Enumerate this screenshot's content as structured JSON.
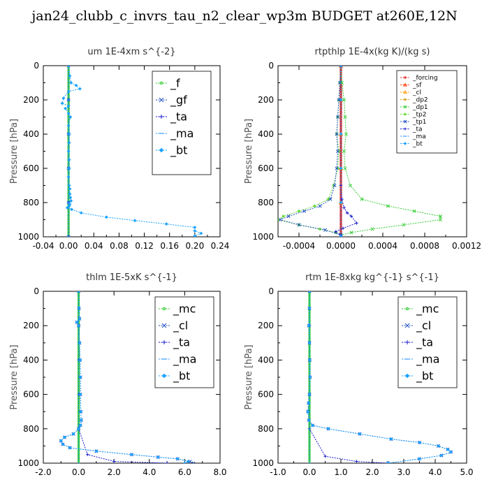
{
  "title": "jan24_clubb_c_invrs_tau_n2_clear_wp3m  BUDGET at260E,12N",
  "chart_data": [
    {
      "type": "line",
      "title": "um   1E-4xm s^{-2}",
      "ylabel": "Pressure [hPa]",
      "xlim": [
        -0.04,
        0.24
      ],
      "ylim": [
        1000,
        0
      ],
      "xticks": [
        "-0.04",
        "0.00",
        "0.04",
        "0.08",
        "0.12",
        "0.16",
        "0.20",
        "0.24"
      ],
      "xtick_values": [
        -0.04,
        0.0,
        0.04,
        0.08,
        0.12,
        0.16,
        0.2,
        0.24
      ],
      "yticks": [
        "0",
        "200",
        "400",
        "600",
        "800",
        "1000"
      ],
      "ytick_values": [
        0,
        200,
        400,
        600,
        800,
        1000
      ],
      "legend": {
        "placement": "top-right",
        "size": "large"
      },
      "series": [
        {
          "name": "_f",
          "color": "#33cc33",
          "marker": "circle",
          "x": [
            0.0,
            0.0,
            0.0,
            0.0,
            0.0,
            0.0
          ],
          "y": [
            0,
            200,
            400,
            600,
            800,
            1000
          ]
        },
        {
          "name": "_gf",
          "color": "#1f4fbf",
          "marker": "cross",
          "x": [
            0.0,
            0.0,
            0.0,
            0.0,
            0.0,
            0.0
          ],
          "y": [
            0,
            200,
            400,
            600,
            800,
            1000
          ]
        },
        {
          "name": "_ta",
          "color": "#1a1acc",
          "marker": "plus",
          "x": [
            0.0,
            0.0,
            0.0,
            0.0,
            0.0,
            0.0
          ],
          "y": [
            0,
            200,
            400,
            600,
            800,
            1000
          ]
        },
        {
          "name": "_ma",
          "color": "#3399ff",
          "marker": "dash",
          "x": [
            0.0,
            0.0,
            0.0,
            0.0,
            0.0,
            0.0
          ],
          "y": [
            0,
            200,
            400,
            600,
            800,
            1000
          ]
        },
        {
          "name": "_bt",
          "color": "#1aa3ff",
          "marker": "diamond",
          "x": [
            0.0,
            0.002,
            0.004,
            0.012,
            0.018,
            0.0,
            -0.008,
            -0.01,
            0.0,
            -0.005,
            0.0,
            0.003,
            0.0,
            0.001,
            0.001,
            0.0,
            0.001,
            0.001,
            0.0,
            0.001,
            0.002,
            0.002,
            0.003,
            0.004,
            0.002,
            0.001,
            -0.002,
            0.005,
            0.02,
            0.06,
            0.105,
            0.155,
            0.2,
            0.2,
            0.21,
            0.2
          ],
          "y": [
            0,
            60,
            100,
            115,
            135,
            150,
            190,
            220,
            235,
            250,
            280,
            300,
            350,
            400,
            450,
            500,
            550,
            600,
            650,
            700,
            720,
            750,
            770,
            790,
            810,
            820,
            830,
            840,
            860,
            885,
            905,
            925,
            945,
            965,
            980,
            995
          ]
        }
      ]
    },
    {
      "type": "line",
      "title": "rtpthlp   1E-4x(kg K)/(kg s)",
      "ylabel": "Pressure [hPa]",
      "xlim": [
        -0.0006,
        0.0012
      ],
      "ylim": [
        1000,
        0
      ],
      "xticks": [
        "-0.0004",
        "0.0000",
        "0.0004",
        "0.0008",
        "0.0012"
      ],
      "xtick_values": [
        -0.0004,
        0.0,
        0.0004,
        0.0008,
        0.0012
      ],
      "yticks": [
        "0",
        "200",
        "400",
        "600",
        "800",
        "1000"
      ],
      "ytick_values": [
        0,
        200,
        400,
        600,
        800,
        1000
      ],
      "legend": {
        "placement": "top-right",
        "size": "small"
      },
      "series": [
        {
          "name": "_forcing",
          "color": "#e02020",
          "marker": "circle",
          "x": [
            0,
            0,
            0,
            0,
            0,
            0
          ],
          "y": [
            0,
            200,
            400,
            600,
            800,
            1000
          ]
        },
        {
          "name": "_sf",
          "color": "#ff3300",
          "marker": "triangle",
          "x": [
            0,
            0,
            0,
            0,
            0,
            0
          ],
          "y": [
            0,
            200,
            400,
            600,
            800,
            1000
          ]
        },
        {
          "name": "_cl",
          "color": "#ff9900",
          "marker": "triangle",
          "x": [
            0,
            0,
            0,
            0,
            0,
            0
          ],
          "y": [
            0,
            200,
            400,
            600,
            800,
            1000
          ]
        },
        {
          "name": "_dp2",
          "color": "#cc9900",
          "marker": "circle",
          "x": [
            0,
            0,
            0,
            0,
            0,
            0
          ],
          "y": [
            0,
            200,
            400,
            600,
            800,
            1000
          ]
        },
        {
          "name": "_dp1",
          "color": "#33cc33",
          "marker": "cross",
          "x": [
            0.0,
            1e-05,
            3e-05,
            4e-05,
            5e-05,
            3e-05,
            4e-05,
            9e-05,
            0.0002,
            0.00045,
            0.0007,
            0.00095,
            0.00095,
            0.0006,
            0.0003,
            0.0001,
            0.0
          ],
          "y": [
            0,
            100,
            200,
            300,
            400,
            500,
            600,
            700,
            780,
            820,
            850,
            880,
            900,
            930,
            955,
            975,
            990
          ]
        },
        {
          "name": "_tp2",
          "color": "#66dd33",
          "marker": "diamond",
          "x": [
            0.0,
            -1e-05,
            -2e-05,
            -3e-05,
            -4e-05,
            -2e-05,
            -3e-05,
            -7e-05,
            -0.00012,
            -0.00025,
            -0.0004,
            -0.00055,
            -0.0006,
            -0.0004,
            -0.0002,
            -5e-05,
            0.0
          ],
          "y": [
            0,
            100,
            200,
            300,
            400,
            500,
            600,
            700,
            780,
            820,
            850,
            880,
            900,
            930,
            955,
            975,
            990
          ]
        },
        {
          "name": "_tp1",
          "color": "#1f4fbf",
          "marker": "cross",
          "x": [
            0.0,
            -1e-05,
            -2e-05,
            -3e-05,
            -4e-05,
            -3e-05,
            -4e-05,
            -6e-05,
            -0.0001,
            -0.0002,
            -0.00035,
            -0.0005,
            -0.00058,
            -0.0004,
            -0.00015,
            0.0
          ],
          "y": [
            0,
            100,
            200,
            300,
            400,
            500,
            600,
            700,
            780,
            820,
            850,
            880,
            900,
            930,
            960,
            990
          ]
        },
        {
          "name": "_ta",
          "color": "#1a1acc",
          "marker": "plus",
          "x": [
            0.0,
            0.0,
            0.0,
            0.0,
            0.0,
            1e-05,
            3e-05,
            6e-05,
            0.0001,
            0.00015,
            2e-05,
            -5e-05,
            0.0
          ],
          "y": [
            0,
            200,
            400,
            600,
            700,
            780,
            830,
            860,
            880,
            920,
            950,
            970,
            990
          ]
        },
        {
          "name": "_ma",
          "color": "#3399ff",
          "marker": "dash",
          "x": [
            0,
            0,
            0,
            0,
            0,
            0
          ],
          "y": [
            0,
            200,
            400,
            600,
            800,
            1000
          ]
        },
        {
          "name": "_bt",
          "color": "#1aa3ff",
          "marker": "diamond",
          "x": [
            0,
            0,
            0,
            0,
            0,
            0
          ],
          "y": [
            0,
            200,
            400,
            600,
            800,
            1000
          ]
        }
      ]
    },
    {
      "type": "line",
      "title": "thlm   1E-5xK s^{-1}",
      "ylabel": "Pressure [hPa]",
      "xlim": [
        -2.0,
        8.0
      ],
      "ylim": [
        1000,
        0
      ],
      "xticks": [
        "-2.0",
        "0.0",
        "2.0",
        "4.0",
        "6.0",
        "8.0"
      ],
      "xtick_values": [
        -2.0,
        0.0,
        2.0,
        4.0,
        6.0,
        8.0
      ],
      "yticks": [
        "0",
        "200",
        "400",
        "600",
        "800",
        "1000"
      ],
      "ytick_values": [
        0,
        200,
        400,
        600,
        800,
        1000
      ],
      "legend": {
        "placement": "top-right",
        "size": "large"
      },
      "series": [
        {
          "name": "_mc",
          "color": "#33cc33",
          "marker": "circle",
          "x": [
            0,
            0,
            0,
            0,
            0,
            0
          ],
          "y": [
            0,
            200,
            400,
            600,
            800,
            1000
          ]
        },
        {
          "name": "_cl",
          "color": "#1f4fbf",
          "marker": "cross",
          "x": [
            0.0,
            0.02,
            0.05,
            -0.1,
            0.0,
            0.05,
            0.08,
            0.1,
            0.1,
            0.12,
            0.15,
            0.1,
            0.0,
            -0.3,
            -0.8,
            -1.0,
            -0.9,
            -0.5,
            1.0,
            3.0,
            4.5,
            5.6,
            6.3,
            6.5
          ],
          "y": [
            0,
            100,
            160,
            180,
            200,
            300,
            400,
            500,
            600,
            700,
            750,
            780,
            800,
            830,
            850,
            870,
            890,
            910,
            930,
            950,
            965,
            975,
            990,
            1000
          ]
        },
        {
          "name": "_ta",
          "color": "#1a1acc",
          "marker": "plus",
          "x": [
            0.0,
            0.0,
            0.0,
            0.0,
            0.0,
            0.5,
            2.0,
            5.0
          ],
          "y": [
            0,
            200,
            400,
            600,
            800,
            950,
            990,
            1000
          ]
        },
        {
          "name": "_ma",
          "color": "#3399ff",
          "marker": "dash",
          "x": [
            0,
            0,
            0,
            0,
            0,
            0
          ],
          "y": [
            0,
            200,
            400,
            600,
            800,
            1000
          ]
        },
        {
          "name": "_bt",
          "color": "#1aa3ff",
          "marker": "diamond",
          "x": [
            0.0,
            0.02,
            0.05,
            -0.1,
            0.0,
            0.05,
            0.08,
            0.1,
            0.1,
            0.12,
            0.15,
            0.1,
            0.0,
            -0.3,
            -0.8,
            -1.0,
            -0.9,
            -0.5,
            1.0,
            3.0,
            4.5,
            5.6,
            6.2,
            6.0
          ],
          "y": [
            0,
            100,
            160,
            180,
            200,
            300,
            400,
            500,
            600,
            700,
            750,
            780,
            800,
            830,
            850,
            870,
            890,
            910,
            930,
            950,
            965,
            975,
            990,
            1000
          ]
        }
      ]
    },
    {
      "type": "line",
      "title": "rtm   1E-8xkg kg^{-1} s^{-1}",
      "ylabel": "Pressure [hPa]",
      "xlim": [
        -1.0,
        5.0
      ],
      "ylim": [
        1000,
        0
      ],
      "xticks": [
        "-1.0",
        "0.0",
        "1.0",
        "2.0",
        "3.0",
        "4.0",
        "5.0"
      ],
      "xtick_values": [
        -1.0,
        0.0,
        1.0,
        2.0,
        3.0,
        4.0,
        5.0
      ],
      "yticks": [
        "0",
        "200",
        "400",
        "600",
        "800",
        "1000"
      ],
      "ytick_values": [
        0,
        200,
        400,
        600,
        800,
        1000
      ],
      "legend": {
        "placement": "top-right",
        "size": "large"
      },
      "series": [
        {
          "name": "_mc",
          "color": "#33cc33",
          "marker": "circle",
          "x": [
            0,
            0,
            0,
            0,
            0,
            0
          ],
          "y": [
            0,
            200,
            400,
            600,
            800,
            1000
          ]
        },
        {
          "name": "_cl",
          "color": "#1f4fbf",
          "marker": "cross",
          "x": [
            0.0,
            0.0,
            -0.02,
            0.0,
            0.01,
            0.02,
            0.0,
            -0.03,
            -0.05,
            -0.02,
            0.1,
            0.6,
            1.6,
            2.6,
            3.5,
            4.1,
            4.4,
            4.5,
            4.2,
            3.5,
            2.5
          ],
          "y": [
            0,
            100,
            200,
            300,
            400,
            500,
            600,
            650,
            700,
            750,
            780,
            800,
            830,
            860,
            880,
            900,
            920,
            935,
            955,
            975,
            1000
          ]
        },
        {
          "name": "_ta",
          "color": "#1a1acc",
          "marker": "plus",
          "x": [
            0.0,
            0.0,
            0.0,
            0.0,
            0.0,
            0.5,
            1.5,
            2.5
          ],
          "y": [
            0,
            200,
            400,
            600,
            800,
            960,
            990,
            1000
          ]
        },
        {
          "name": "_ma",
          "color": "#3399ff",
          "marker": "dash",
          "x": [
            0,
            0,
            0,
            0,
            0,
            0
          ],
          "y": [
            0,
            200,
            400,
            600,
            800,
            1000
          ]
        },
        {
          "name": "_bt",
          "color": "#1aa3ff",
          "marker": "diamond",
          "x": [
            0.0,
            0.0,
            -0.02,
            0.0,
            0.01,
            0.02,
            0.0,
            -0.03,
            -0.05,
            -0.02,
            0.1,
            0.6,
            1.6,
            2.6,
            3.5,
            4.1,
            4.4,
            4.5,
            4.2,
            3.5,
            2.5
          ],
          "y": [
            0,
            100,
            200,
            300,
            400,
            500,
            600,
            650,
            700,
            750,
            780,
            800,
            830,
            860,
            880,
            900,
            920,
            935,
            955,
            975,
            1000
          ]
        }
      ]
    }
  ]
}
